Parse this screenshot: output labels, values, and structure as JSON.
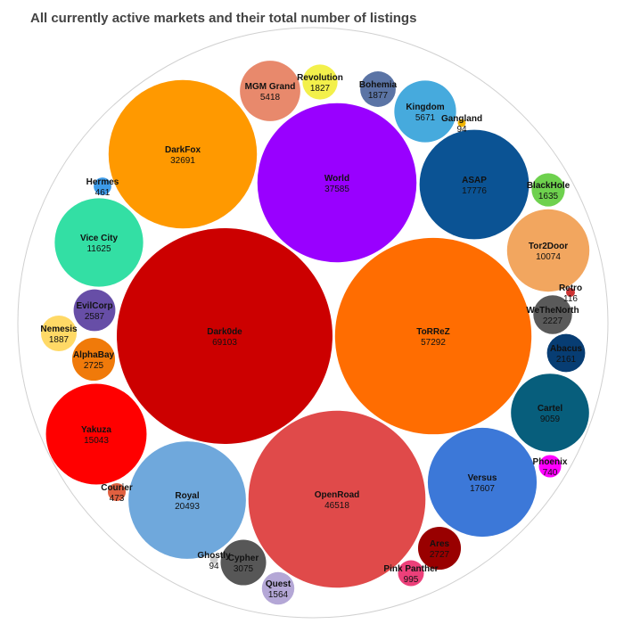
{
  "chart_data": {
    "type": "bubble",
    "title": "All currently active markets and their total number of listings",
    "value_label": "listings",
    "items": [
      {
        "name": "Dark0de",
        "value": 69103,
        "color": "#cc0000"
      },
      {
        "name": "ToRReZ",
        "value": 57292,
        "color": "#ff6d01"
      },
      {
        "name": "OpenRoad",
        "value": 46518,
        "color": "#e04a4a"
      },
      {
        "name": "World",
        "value": 37585,
        "color": "#9900ff"
      },
      {
        "name": "DarkFox",
        "value": 32691,
        "color": "#ff9900"
      },
      {
        "name": "Royal",
        "value": 20493,
        "color": "#6fa8dc"
      },
      {
        "name": "ASAP",
        "value": 17776,
        "color": "#0b5394"
      },
      {
        "name": "Versus",
        "value": 17607,
        "color": "#3c78d8"
      },
      {
        "name": "Yakuza",
        "value": 15043,
        "color": "#ff0000"
      },
      {
        "name": "Vice City",
        "value": 11625,
        "color": "#33dfa4"
      },
      {
        "name": "Tor2Door",
        "value": 10074,
        "color": "#f2a65f"
      },
      {
        "name": "Cartel",
        "value": 9059,
        "color": "#075e7c"
      },
      {
        "name": "Kingdom",
        "value": 5671,
        "color": "#46aadd"
      },
      {
        "name": "MGM Grand",
        "value": 5418,
        "color": "#e8896c"
      },
      {
        "name": "Cypher",
        "value": 3075,
        "color": "#575757"
      },
      {
        "name": "AlphaBay",
        "value": 2725,
        "color": "#f07a0a"
      },
      {
        "name": "Ares",
        "value": 2727,
        "color": "#990000"
      },
      {
        "name": "EvilCorp",
        "value": 2587,
        "color": "#674ea7"
      },
      {
        "name": "WeTheNorth",
        "value": 2227,
        "color": "#5a5a5a"
      },
      {
        "name": "Abacus",
        "value": 2161,
        "color": "#073d73"
      },
      {
        "name": "Nemesis",
        "value": 1887,
        "color": "#ffd966"
      },
      {
        "name": "Bohemia",
        "value": 1877,
        "color": "#5b74a5"
      },
      {
        "name": "Revolution",
        "value": 1827,
        "color": "#f3f04b"
      },
      {
        "name": "BlackHole",
        "value": 1635,
        "color": "#6ed14e"
      },
      {
        "name": "Quest",
        "value": 1564,
        "color": "#b4a7d6"
      },
      {
        "name": "Pink Panther",
        "value": 995,
        "color": "#ec407a"
      },
      {
        "name": "Phoenix",
        "value": 740,
        "color": "#ff00ff"
      },
      {
        "name": "Courier",
        "value": 473,
        "color": "#e06040"
      },
      {
        "name": "Hermes",
        "value": 461,
        "color": "#3d9be9"
      },
      {
        "name": "Retro",
        "value": 116,
        "color": "#cc3333"
      },
      {
        "name": "Gangland",
        "value": 94,
        "color": "#f0b400"
      },
      {
        "name": "Ghostly",
        "value": 94,
        "color": "#cccccc"
      }
    ]
  }
}
